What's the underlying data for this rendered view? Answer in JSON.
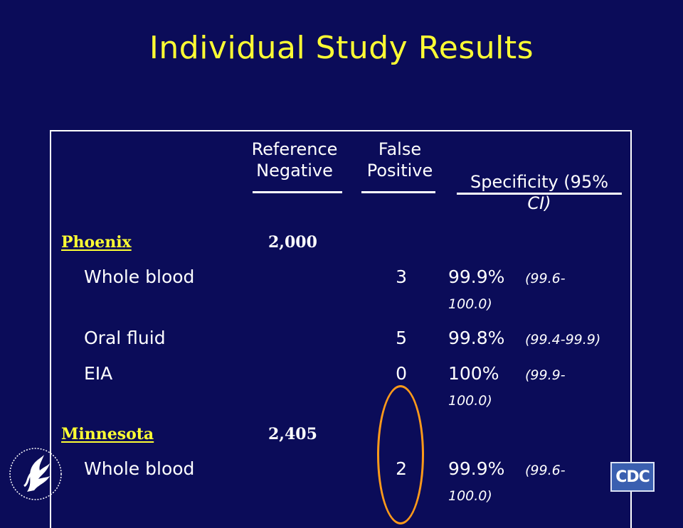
{
  "slide": {
    "title": "Individual Study Results"
  },
  "table": {
    "headers": {
      "reference_negative": [
        "Reference",
        "Negative"
      ],
      "false_positive": [
        "False",
        "Positive"
      ],
      "specificity": [
        "Specificity (95%",
        "CI)"
      ]
    },
    "sites": [
      {
        "name": "Phoenix",
        "reference_negative": "2,000",
        "rows": [
          {
            "test": "Whole blood",
            "false_positive": "3",
            "specificity": "99.9%",
            "ci_line1": "(99.6-",
            "ci_line2": "100.0)"
          },
          {
            "test": "Oral fluid",
            "false_positive": "5",
            "specificity": "99.8%",
            "ci_line1": "(99.4-99.9)",
            "ci_line2": ""
          },
          {
            "test": "EIA",
            "false_positive": "0",
            "specificity": "100%",
            "ci_line1": "(99.9-",
            "ci_line2": "100.0)"
          }
        ]
      },
      {
        "name": "Minnesota",
        "reference_negative": "2,405",
        "rows": [
          {
            "test": "Whole blood",
            "false_positive": "2",
            "specificity": "99.9%",
            "ci_line1": "(99.6-",
            "ci_line2": "100.0)"
          }
        ]
      }
    ]
  },
  "annotation": {
    "oval_color": "#ff9a1a"
  },
  "logos": {
    "hhs_icon": "hhs-eagle-seal-icon",
    "cdc_text": "CDC"
  },
  "colors": {
    "background": "#0b0c59",
    "title": "#ffff33",
    "site_label": "#ffff33",
    "text": "#ffffff"
  }
}
